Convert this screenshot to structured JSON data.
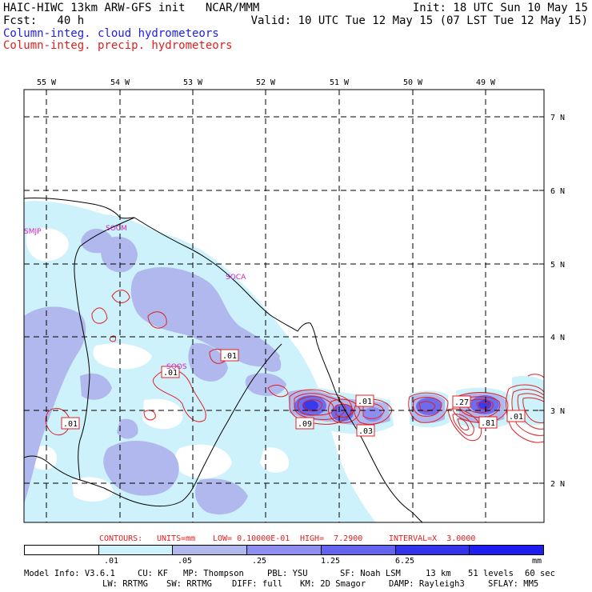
{
  "header": {
    "left_line1": "HAIC-HIWC 13km ARW-GFS init   NCAR/MMM",
    "left_line2": "Fcst:   40 h",
    "right_line1": "Init: 18 UTC Sun 10 May 15",
    "right_line2": "Valid: 10 UTC Tue 12 May 15 (07 LST Tue 12 May 15)",
    "field_cloud": "Column-integ. cloud hydrometeors",
    "field_precip": "Column-integ. precip. hydrometeors"
  },
  "axes": {
    "longitudes": [
      "55 W",
      "54 W",
      "53 W",
      "52 W",
      "51 W",
      "50 W",
      "49 W"
    ],
    "latitudes": [
      "7 N",
      "6 N",
      "5 N",
      "4 N",
      "3 N",
      "2 N"
    ]
  },
  "stations": [
    "SMJP",
    "SOCM",
    "SOCA",
    "SOOS"
  ],
  "contour_labels": [
    ".01",
    ".01",
    ".01",
    ".09",
    ".01",
    ".03",
    ".27",
    ".81",
    ".01"
  ],
  "contour_info": {
    "contours": "CONTOURS:",
    "units": "UNITS=mm",
    "low": "LOW= 0.10000E-01",
    "high": "HIGH=  7.2900",
    "interval": "INTERVAL=X  3.0000"
  },
  "colorbar": {
    "labels": [
      ".01",
      ".05",
      ".25",
      "1.25",
      "6.25"
    ],
    "unit": "mm",
    "colors": [
      "#ffffff",
      "#cdf2fb",
      "#b0b8ee",
      "#8e8ef0",
      "#6464ee",
      "#3333ec",
      "#1e1ef0"
    ]
  },
  "model_info": {
    "line1": {
      "model": "Model Info: V3.6.1",
      "cu": "CU: KF",
      "mp": "MP: Thompson",
      "pbl": "PBL: YSU",
      "sf": "SF: Noah LSM",
      "res": "13 km",
      "levels": "51 levels",
      "dt": "60 sec"
    },
    "line2": {
      "lw": "LW: RRTMG",
      "sw": "SW: RRTMG",
      "diff": "DIFF: full",
      "km": "KM: 2D Smagor",
      "damp": "DAMP: Rayleigh3",
      "sflay": "SFLAY: MM5"
    }
  }
}
